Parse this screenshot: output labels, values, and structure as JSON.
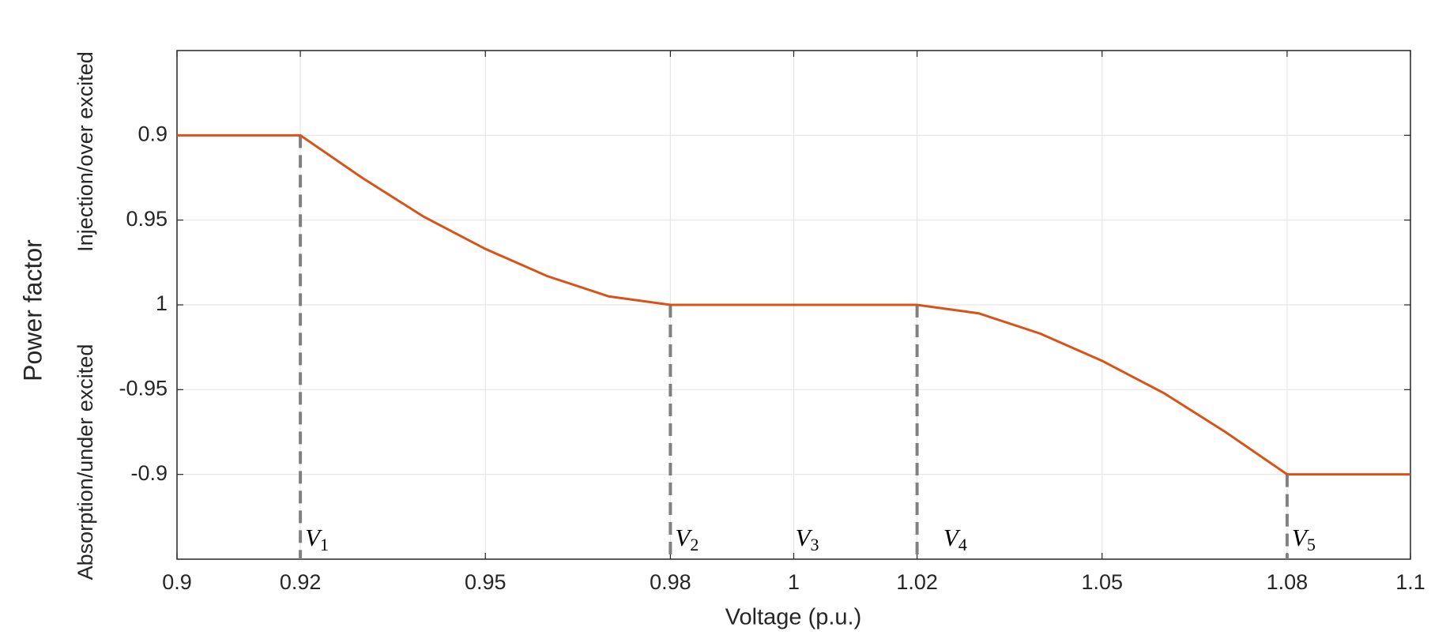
{
  "chart_data": {
    "type": "line",
    "xlabel": "Voltage (p.u.)",
    "ylabel": "Power factor",
    "ylabel_upper": "Injection/over excited",
    "ylabel_lower": "Absorption/under excited",
    "x": [
      0.9,
      0.92,
      0.93,
      0.94,
      0.95,
      0.96,
      0.97,
      0.98,
      1.02,
      1.03,
      1.04,
      1.05,
      1.06,
      1.07,
      1.08,
      1.1
    ],
    "series": [
      {
        "color": "#d95319",
        "values": [
          0.9,
          0.9,
          0.925,
          0.948,
          0.967,
          0.983,
          0.995,
          1,
          1,
          1.005,
          1.017,
          1.033,
          1.052,
          1.075,
          1.1,
          1.1
        ]
      }
    ],
    "xlim": [
      0.9,
      1.1
    ],
    "xticks": [
      0.9,
      0.92,
      0.95,
      0.98,
      1,
      1.02,
      1.05,
      1.08,
      1.1
    ],
    "ylim": [
      1.15,
      0.85
    ],
    "yticks": [
      0.9,
      0.95,
      1,
      {
        "value": 1.05,
        "label": "-0.95"
      },
      {
        "value": 1.1,
        "label": "-0.9"
      }
    ],
    "grid": true,
    "vlines": [
      0.92,
      0.98,
      1.02,
      1.08
    ],
    "annotations": [
      {
        "label": "V",
        "sub": "1",
        "x": 0.92
      },
      {
        "label": "V",
        "sub": "2",
        "x": 0.98
      },
      {
        "label": "V",
        "sub": "3",
        "x": 0.9995
      },
      {
        "label": "V",
        "sub": "4",
        "x": 1.0235
      },
      {
        "label": "V",
        "sub": "5",
        "x": 1.08
      }
    ]
  }
}
